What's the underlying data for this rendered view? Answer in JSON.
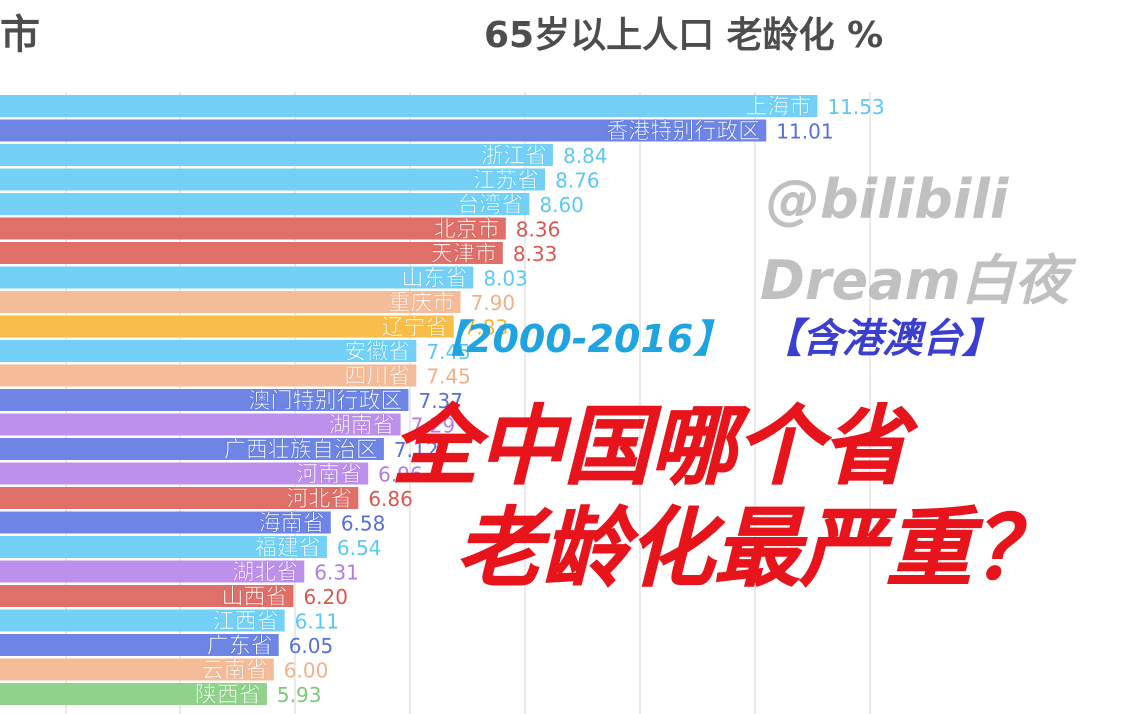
{
  "header": {
    "left_title": "市",
    "main_title": "65岁以上人口 老龄化 %"
  },
  "overlay": {
    "watermark_line1": "@bilibili",
    "watermark_line2": "Dream白夜",
    "year_range": "【2000-2016】",
    "region_note": "【含港澳台】",
    "headline_line1": "全中国哪个省",
    "headline_line2": "老龄化最严重？"
  },
  "chart_data": {
    "type": "bar",
    "orientation": "horizontal",
    "categories": [
      "上海市",
      "香港特别行政区",
      "浙江省",
      "江苏省",
      "台湾省",
      "北京市",
      "天津市",
      "山东省",
      "重庆市",
      "辽宁省",
      "安徽省",
      "四川省",
      "澳门特别行政区",
      "湖南省",
      "广西壮族自治区",
      "河南省",
      "河北省",
      "海南省",
      "福建省",
      "湖北省",
      "山西省",
      "江西省",
      "广东省",
      "云南省",
      "陕西省"
    ],
    "values": [
      11.53,
      11.01,
      8.84,
      8.76,
      8.6,
      8.36,
      8.33,
      8.03,
      7.9,
      7.83,
      7.45,
      7.45,
      7.37,
      7.29,
      7.12,
      6.96,
      6.86,
      6.58,
      6.54,
      6.31,
      6.2,
      6.11,
      6.05,
      6.0,
      5.93
    ],
    "value_labels": [
      "11.53",
      "11.01",
      "8.84",
      "8.76",
      "8.60",
      "8.36",
      "8.33",
      "8.03",
      "7.90",
      "7.83",
      "7.45",
      "7.45",
      "7.37",
      "7.29",
      "7.12",
      "6.96",
      "6.86",
      "6.58",
      "6.54",
      "6.31",
      "6.20",
      "6.11",
      "6.05",
      "6.00",
      "5.93"
    ],
    "colors": [
      "#5bc8f5",
      "#5470e0",
      "#5bc8f5",
      "#5bc8f5",
      "#5bc8f5",
      "#d9574f",
      "#d9574f",
      "#5bc8f5",
      "#f3b088",
      "#f8b22a",
      "#5bc8f5",
      "#f3b088",
      "#5470e0",
      "#b07ce8",
      "#5470e0",
      "#b07ce8",
      "#d9574f",
      "#5470e0",
      "#5bc8f5",
      "#b07ce8",
      "#d9574f",
      "#5bc8f5",
      "#5470e0",
      "#f3b088",
      "#7cc977"
    ],
    "grid": true
  }
}
